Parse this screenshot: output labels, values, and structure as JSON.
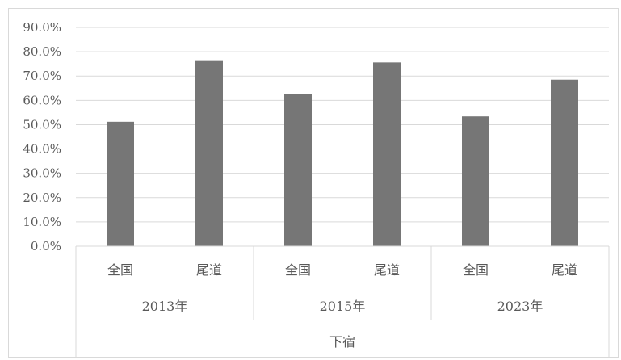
{
  "chart_data": {
    "type": "bar",
    "ylim": [
      0,
      90
    ],
    "y_tick_step": 10,
    "y_tick_format": "percent_1dp",
    "grid": true,
    "legend": "none",
    "bar_color": "#767676",
    "gridline_color": "#d9d9d9",
    "categories": [
      {
        "label": "全国",
        "value": 51.2
      },
      {
        "label": "尾道",
        "value": 76.5
      },
      {
        "label": "全国",
        "value": 62.6
      },
      {
        "label": "尾道",
        "value": 75.6
      },
      {
        "label": "全国",
        "value": 53.4
      },
      {
        "label": "尾道",
        "value": 68.5
      }
    ],
    "groups": [
      {
        "label": "2013年",
        "span": 2
      },
      {
        "label": "2015年",
        "span": 2
      },
      {
        "label": "2023年",
        "span": 2
      }
    ],
    "supergroup": {
      "label": "下宿",
      "span": 6
    }
  }
}
